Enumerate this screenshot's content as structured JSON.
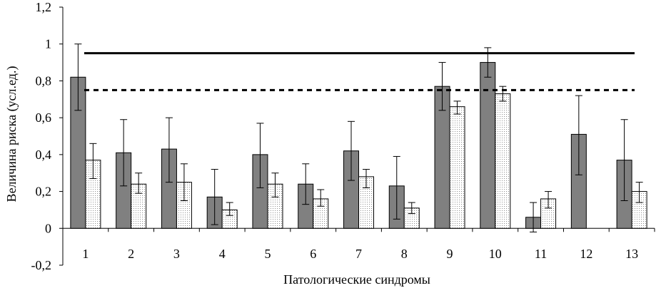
{
  "chart_data": {
    "type": "bar",
    "title": "",
    "xlabel": "Патологические синдромы",
    "ylabel": "Величина риска (усл.ед.)",
    "categories": [
      "1",
      "2",
      "3",
      "4",
      "5",
      "6",
      "7",
      "8",
      "9",
      "10",
      "11",
      "12",
      "13"
    ],
    "ylim": [
      -0.2,
      1.2
    ],
    "yticks": [
      "-0,2",
      "0",
      "0,2",
      "0,4",
      "0,6",
      "0,8",
      "1",
      "1,2"
    ],
    "ytick_values": [
      -0.2,
      0,
      0.2,
      0.4,
      0.6,
      0.8,
      1.0,
      1.2
    ],
    "grid": false,
    "legend": "none",
    "series": [
      {
        "style": "solid-gray",
        "color": "#808080",
        "values": [
          0.82,
          0.41,
          0.43,
          0.17,
          0.4,
          0.24,
          0.42,
          0.23,
          0.77,
          0.9,
          0.06,
          0.51,
          0.37
        ],
        "error_low": [
          0.64,
          0.23,
          0.25,
          0.02,
          0.22,
          0.13,
          0.26,
          0.05,
          0.64,
          0.82,
          -0.02,
          0.29,
          0.15
        ],
        "error_high": [
          1.0,
          0.59,
          0.6,
          0.32,
          0.57,
          0.35,
          0.58,
          0.39,
          0.9,
          0.98,
          0.14,
          0.72,
          0.59
        ]
      },
      {
        "style": "dotted-white",
        "color": "#ffffff",
        "values": [
          0.37,
          0.24,
          0.25,
          0.1,
          0.24,
          0.16,
          0.28,
          0.11,
          0.66,
          0.73,
          0.16,
          null,
          0.2
        ],
        "error_low": [
          0.27,
          0.19,
          0.15,
          0.07,
          0.17,
          0.12,
          0.22,
          0.08,
          0.62,
          0.69,
          0.11,
          null,
          0.14
        ],
        "error_high": [
          0.46,
          0.3,
          0.35,
          0.14,
          0.3,
          0.21,
          0.32,
          0.14,
          0.69,
          0.77,
          0.2,
          null,
          0.25
        ]
      }
    ],
    "reference_lines": [
      {
        "style": "solid",
        "value": 0.95
      },
      {
        "style": "dashed",
        "value": 0.75
      }
    ]
  }
}
